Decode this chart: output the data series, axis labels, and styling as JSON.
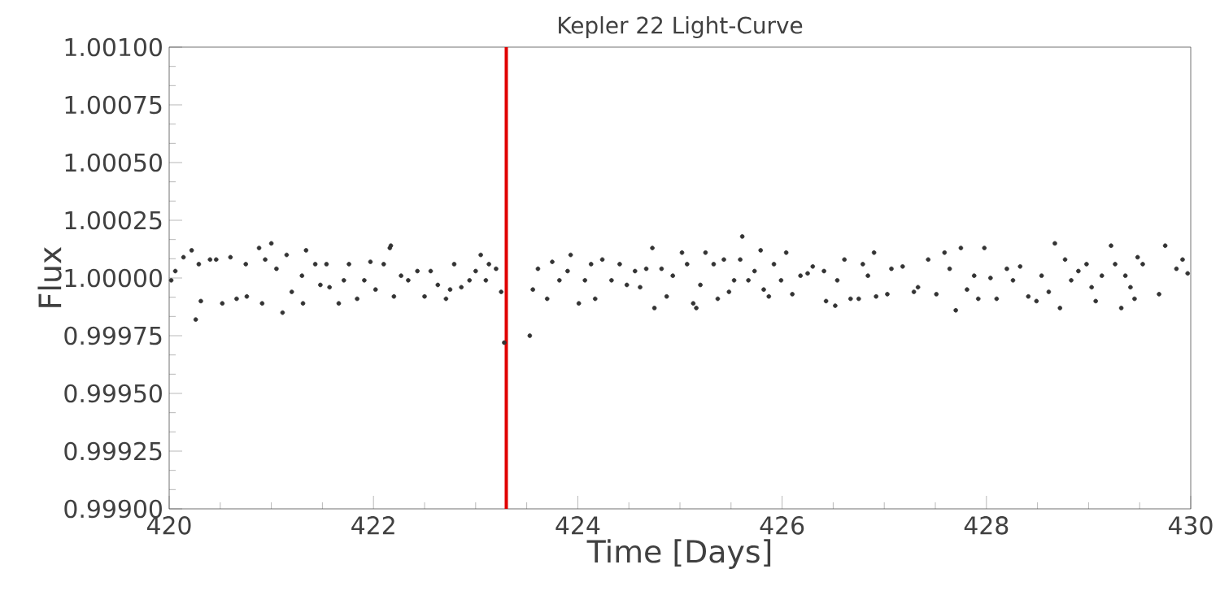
{
  "chart_data": {
    "type": "scatter",
    "title": "Kepler 22 Light-Curve",
    "xlabel": "Time [Days]",
    "ylabel": "Flux",
    "xlim": [
      420,
      430
    ],
    "xticks": [
      420,
      422,
      424,
      426,
      428,
      430
    ],
    "ylim": [
      0.999,
      1.001
    ],
    "yticks": [
      {
        "value": 0.999,
        "label": "0.99900"
      },
      {
        "value": 0.99925,
        "label": "0.99925"
      },
      {
        "value": 0.9995,
        "label": "0.99950"
      },
      {
        "value": 0.99975,
        "label": "0.99975"
      },
      {
        "value": 1.0,
        "label": "1.00000"
      },
      {
        "value": 1.00025,
        "label": "1.00025"
      },
      {
        "value": 1.0005,
        "label": "1.00050"
      },
      {
        "value": 1.00075,
        "label": "1.00075"
      },
      {
        "value": 1.001,
        "label": "1.00100"
      }
    ],
    "marker": "circle",
    "grid": false,
    "ref_lines": [
      {
        "axis": "x",
        "value": 423.3,
        "color": "#e00000",
        "line_style": "solid"
      }
    ],
    "series": [
      {
        "color": "#333333",
        "x": [
          420.02,
          420.06,
          420.14,
          420.22,
          420.26,
          420.29,
          420.31,
          420.4,
          420.46,
          420.52,
          420.6,
          420.66,
          420.75,
          420.76,
          420.88,
          420.91,
          420.94,
          421.0,
          421.05,
          421.11,
          421.15,
          421.2,
          421.3,
          421.31,
          421.34,
          421.43,
          421.48,
          421.54,
          421.57,
          421.66,
          421.71,
          421.76,
          421.84,
          421.91,
          421.97,
          422.02,
          422.1,
          422.16,
          422.17,
          422.2,
          422.27,
          422.34,
          422.43,
          422.5,
          422.56,
          422.63,
          422.71,
          422.75,
          422.79,
          422.86,
          422.94,
          423.0,
          423.05,
          423.1,
          423.13,
          423.2,
          423.25,
          423.28,
          423.53,
          423.56,
          423.61,
          423.7,
          423.75,
          423.82,
          423.9,
          423.93,
          424.01,
          424.07,
          424.13,
          424.17,
          424.24,
          424.33,
          424.41,
          424.48,
          424.56,
          424.61,
          424.67,
          424.73,
          424.75,
          424.82,
          424.87,
          424.93,
          425.02,
          425.07,
          425.13,
          425.16,
          425.2,
          425.25,
          425.33,
          425.37,
          425.43,
          425.48,
          425.53,
          425.59,
          425.61,
          425.67,
          425.73,
          425.79,
          425.82,
          425.87,
          425.92,
          425.99,
          426.04,
          426.1,
          426.18,
          426.25,
          426.3,
          426.41,
          426.43,
          426.52,
          426.54,
          426.61,
          426.67,
          426.75,
          426.79,
          426.84,
          426.9,
          426.92,
          427.03,
          427.07,
          427.18,
          427.29,
          427.33,
          427.43,
          427.51,
          427.59,
          427.64,
          427.7,
          427.75,
          427.81,
          427.88,
          427.92,
          427.98,
          428.04,
          428.1,
          428.2,
          428.26,
          428.33,
          428.41,
          428.49,
          428.54,
          428.61,
          428.67,
          428.72,
          428.77,
          428.83,
          428.9,
          428.98,
          429.03,
          429.07,
          429.13,
          429.22,
          429.26,
          429.32,
          429.36,
          429.41,
          429.45,
          429.48,
          429.53,
          429.69,
          429.75,
          429.86,
          429.92,
          429.97
        ],
        "values": [
          0.99999,
          1.00003,
          1.00009,
          1.00012,
          0.99982,
          1.00006,
          0.9999,
          1.00008,
          1.00008,
          0.99989,
          1.00009,
          0.99991,
          1.00006,
          0.99992,
          1.00013,
          0.99989,
          1.00008,
          1.00015,
          1.00004,
          0.99985,
          1.0001,
          0.99994,
          1.00001,
          0.99989,
          1.00012,
          1.00006,
          0.99997,
          1.00006,
          0.99996,
          0.99989,
          0.99999,
          1.00006,
          0.99991,
          0.99999,
          1.00007,
          0.99995,
          1.00006,
          1.00013,
          1.00014,
          0.99992,
          1.00001,
          0.99999,
          1.00003,
          0.99992,
          1.00003,
          0.99997,
          0.99991,
          0.99995,
          1.00006,
          0.99996,
          0.99999,
          1.00003,
          1.0001,
          0.99999,
          1.00006,
          1.00004,
          0.99994,
          0.99972,
          0.99975,
          0.99995,
          1.00004,
          0.99991,
          1.00007,
          0.99999,
          1.00003,
          1.0001,
          0.99989,
          0.99999,
          1.00006,
          0.99991,
          1.00008,
          0.99999,
          1.00006,
          0.99997,
          1.00003,
          0.99996,
          1.00004,
          1.00013,
          0.99987,
          1.00004,
          0.99992,
          1.00001,
          1.00011,
          1.00006,
          0.99989,
          0.99987,
          0.99997,
          1.00011,
          1.00006,
          0.99991,
          1.00008,
          0.99994,
          0.99999,
          1.00008,
          1.00018,
          0.99999,
          1.00003,
          1.00012,
          0.99995,
          0.99992,
          1.00006,
          0.99999,
          1.00011,
          0.99993,
          1.00001,
          1.00002,
          1.00005,
          1.00003,
          0.9999,
          0.99988,
          0.99999,
          1.00008,
          0.99991,
          0.99991,
          1.00006,
          1.00001,
          1.00011,
          0.99992,
          0.99993,
          1.00004,
          1.00005,
          0.99994,
          0.99996,
          1.00008,
          0.99993,
          1.00011,
          1.00004,
          0.99986,
          1.00013,
          0.99995,
          1.00001,
          0.99991,
          1.00013,
          1.0,
          0.99991,
          1.00004,
          0.99999,
          1.00005,
          0.99992,
          0.9999,
          1.00001,
          0.99994,
          1.00015,
          0.99987,
          1.00008,
          0.99999,
          1.00003,
          1.00006,
          0.99996,
          0.9999,
          1.00001,
          1.00014,
          1.00006,
          0.99987,
          1.00001,
          0.99996,
          0.99991,
          1.00009,
          1.00006,
          0.99993,
          1.00014,
          1.00004,
          1.00008,
          1.00002
        ]
      }
    ]
  }
}
